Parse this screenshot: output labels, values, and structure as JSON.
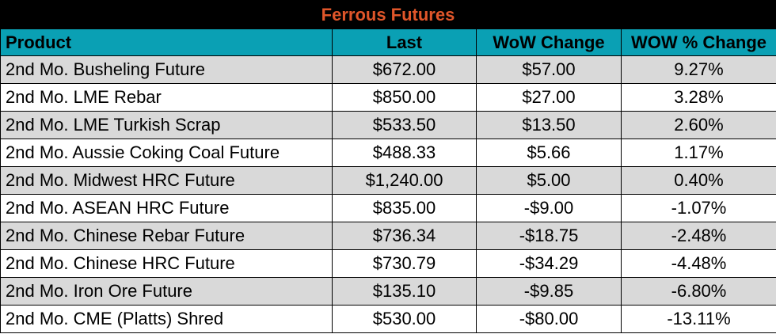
{
  "chart_data": {
    "type": "table",
    "title": "Ferrous Futures",
    "columns": [
      "Product",
      "Last",
      "WoW Change",
      "WOW % Change"
    ],
    "rows": [
      [
        "2nd Mo. Busheling Future",
        "$672.00",
        "$57.00",
        "9.27%"
      ],
      [
        "2nd Mo. LME Rebar",
        "$850.00",
        "$27.00",
        "3.28%"
      ],
      [
        "2nd Mo. LME Turkish Scrap",
        "$533.50",
        "$13.50",
        "2.60%"
      ],
      [
        "2nd Mo. Aussie Coking Coal Future",
        "$488.33",
        "$5.66",
        "1.17%"
      ],
      [
        "2nd Mo. Midwest HRC Future",
        "$1,240.00",
        "$5.00",
        "0.40%"
      ],
      [
        "2nd Mo. ASEAN HRC Future",
        "$835.00",
        "-$9.00",
        "-1.07%"
      ],
      [
        "2nd Mo. Chinese Rebar Future",
        "$736.34",
        "-$18.75",
        "-2.48%"
      ],
      [
        "2nd Mo. Chinese HRC Future",
        "$730.79",
        "-$34.29",
        "-4.48%"
      ],
      [
        "2nd Mo. Iron Ore Future",
        "$135.10",
        "-$9.85",
        "-6.80%"
      ],
      [
        "2nd Mo. CME (Platts) Shred",
        "$530.00",
        "-$80.00",
        "-13.11%"
      ]
    ]
  },
  "colors": {
    "title_background": "#000000",
    "title_text": "#e0562a",
    "header_background": "#0aa0b4",
    "row_shaded": "#d9d9d9",
    "row_plain": "#ffffff"
  }
}
